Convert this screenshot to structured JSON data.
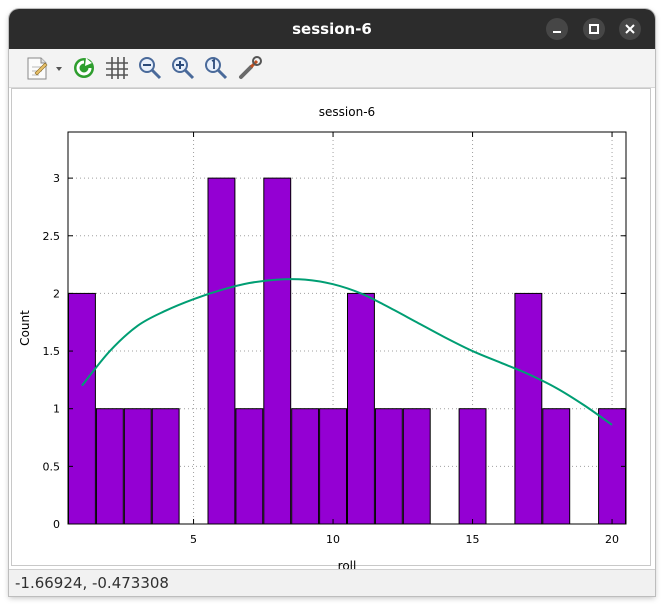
{
  "window": {
    "title": "session-6",
    "controls": {
      "minimize": "minimize",
      "maximize": "maximize",
      "close": "close"
    }
  },
  "toolbar": {
    "items": [
      {
        "icon": "export-document-icon"
      },
      {
        "icon": "replot-icon"
      },
      {
        "icon": "grid-icon"
      },
      {
        "icon": "zoom-out-icon"
      },
      {
        "icon": "zoom-in-icon"
      },
      {
        "icon": "zoom-reset-icon"
      },
      {
        "icon": "settings-wrench-icon"
      }
    ]
  },
  "status": {
    "coordinates": "-1.66924, -0.473308"
  },
  "colors": {
    "bar": "#9400d3",
    "curve": "#009e73",
    "titlebar": "#2c2c2c"
  },
  "chart_data": {
    "type": "bar",
    "title": "session-6",
    "xlabel": "roll",
    "ylabel": "Count",
    "xlim": [
      0.5,
      20.5
    ],
    "ylim": [
      0,
      3.4
    ],
    "xticks": [
      "5",
      "10",
      "15",
      "20"
    ],
    "yticks": [
      "0",
      "0.5",
      "1",
      "1.5",
      "2",
      "2.5",
      "3"
    ],
    "grid": true,
    "categories": [
      1,
      2,
      3,
      4,
      5,
      6,
      7,
      8,
      9,
      10,
      11,
      12,
      13,
      14,
      15,
      16,
      17,
      18,
      19,
      20
    ],
    "values": [
      2,
      1,
      1,
      1,
      0,
      3,
      1,
      3,
      1,
      1,
      2,
      1,
      1,
      0,
      1,
      0,
      2,
      1,
      0,
      1
    ],
    "series": [
      {
        "type": "line",
        "x": [
          1,
          2,
          3,
          4,
          5,
          6,
          7,
          8,
          9,
          10,
          11,
          12,
          13,
          14,
          15,
          16,
          17,
          18,
          19,
          20
        ],
        "values": [
          1.2,
          1.5,
          1.72,
          1.85,
          1.95,
          2.03,
          2.09,
          2.12,
          2.12,
          2.08,
          2.0,
          1.88,
          1.75,
          1.62,
          1.5,
          1.4,
          1.3,
          1.18,
          1.03,
          0.86
        ]
      }
    ]
  }
}
